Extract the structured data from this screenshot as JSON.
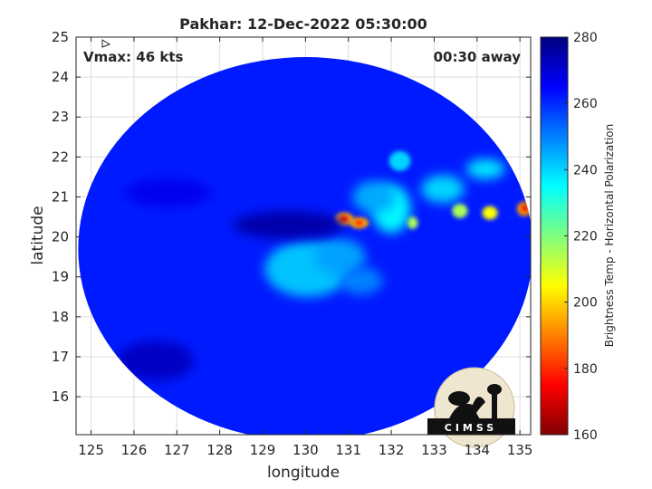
{
  "chart_data": {
    "type": "heatmap",
    "title": "Pakhar: 12-Dec-2022 05:30:00",
    "xlabel": "longitude",
    "ylabel": "latitude",
    "xlim": [
      124.65,
      135.25
    ],
    "ylim": [
      15.05,
      25.0
    ],
    "xticks": [
      125,
      126,
      127,
      128,
      129,
      130,
      131,
      132,
      133,
      134,
      135
    ],
    "yticks": [
      16,
      17,
      18,
      19,
      20,
      21,
      22,
      23,
      24,
      25
    ],
    "grid": true,
    "annotations": {
      "vmax": "Vmax: 46 kts",
      "time_away": "00:30 away"
    },
    "colorbar": {
      "label": "Brightness Temp - Horizontal Polarization",
      "min": 160,
      "max": 280,
      "ticks": [
        160,
        180,
        200,
        220,
        240,
        260,
        280
      ],
      "colormap": "jet"
    },
    "swath": {
      "center_lon": 130.0,
      "center_lat": 19.7,
      "radius_lon": 5.3,
      "radius_lat": 4.8,
      "background_tb": 262
    },
    "features": [
      {
        "lon": 130.05,
        "lat": 19.2,
        "rx": 1.0,
        "ry": 0.7,
        "tb": 242
      },
      {
        "lon": 130.8,
        "lat": 19.5,
        "rx": 0.6,
        "ry": 0.45,
        "tb": 246
      },
      {
        "lon": 131.3,
        "lat": 18.9,
        "rx": 0.5,
        "ry": 0.35,
        "tb": 250
      },
      {
        "lon": 132.0,
        "lat": 20.7,
        "rx": 0.45,
        "ry": 0.6,
        "tb": 236
      },
      {
        "lon": 131.6,
        "lat": 21.0,
        "rx": 0.5,
        "ry": 0.4,
        "tb": 245
      },
      {
        "lon": 132.2,
        "lat": 21.9,
        "rx": 0.25,
        "ry": 0.25,
        "tb": 240
      },
      {
        "lon": 133.2,
        "lat": 21.2,
        "rx": 0.5,
        "ry": 0.35,
        "tb": 240
      },
      {
        "lon": 134.2,
        "lat": 21.7,
        "rx": 0.45,
        "ry": 0.25,
        "tb": 238
      },
      {
        "lon": 132.5,
        "lat": 20.35,
        "rx": 0.12,
        "ry": 0.15,
        "tb": 215
      },
      {
        "lon": 133.6,
        "lat": 20.65,
        "rx": 0.18,
        "ry": 0.18,
        "tb": 215
      },
      {
        "lon": 134.3,
        "lat": 20.6,
        "rx": 0.18,
        "ry": 0.17,
        "tb": 205
      },
      {
        "lon": 130.9,
        "lat": 20.45,
        "rx": 0.22,
        "ry": 0.16,
        "tb": 196
      },
      {
        "lon": 131.25,
        "lat": 20.35,
        "rx": 0.22,
        "ry": 0.14,
        "tb": 196
      },
      {
        "lon": 135.1,
        "lat": 20.7,
        "rx": 0.17,
        "ry": 0.18,
        "tb": 192
      },
      {
        "lon": 130.9,
        "lat": 20.45,
        "rx": 0.11,
        "ry": 0.08,
        "tb": 175
      },
      {
        "lon": 131.25,
        "lat": 20.35,
        "rx": 0.1,
        "ry": 0.07,
        "tb": 178
      },
      {
        "lon": 135.12,
        "lat": 20.72,
        "rx": 0.07,
        "ry": 0.08,
        "tb": 170
      },
      {
        "lon": 129.6,
        "lat": 20.3,
        "rx": 1.3,
        "ry": 0.35,
        "tb": 275
      },
      {
        "lon": 126.5,
        "lat": 16.9,
        "rx": 0.9,
        "ry": 0.5,
        "tb": 272
      },
      {
        "lon": 126.8,
        "lat": 21.1,
        "rx": 1.0,
        "ry": 0.35,
        "tb": 267
      }
    ],
    "logo": {
      "text": "CIMSS"
    }
  }
}
